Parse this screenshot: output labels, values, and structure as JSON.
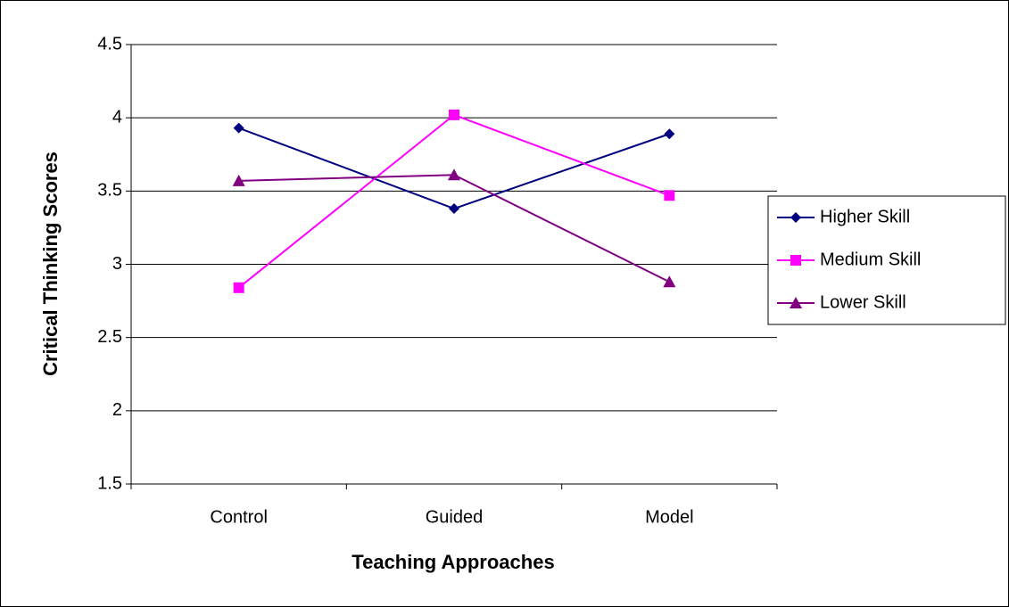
{
  "chart_data": {
    "type": "line",
    "x_label": "Teaching Approaches",
    "y_label": "Critical Thinking Scores",
    "categories": [
      "Control",
      "Guided",
      "Model"
    ],
    "series": [
      {
        "name": "Higher Skill",
        "color": "#000080",
        "marker": "diamond",
        "values": [
          3.93,
          3.38,
          3.89
        ]
      },
      {
        "name": "Medium Skill",
        "color": "#ff00ff",
        "marker": "square",
        "values": [
          2.84,
          4.02,
          3.47
        ]
      },
      {
        "name": "Lower Skill",
        "color": "#800080",
        "marker": "triangle",
        "values": [
          3.57,
          3.61,
          2.88
        ]
      }
    ],
    "ylim": [
      1.5,
      4.5
    ],
    "yticks": [
      1.5,
      2,
      2.5,
      3,
      3.5,
      4,
      4.5
    ],
    "grid": true,
    "legend": "right"
  }
}
